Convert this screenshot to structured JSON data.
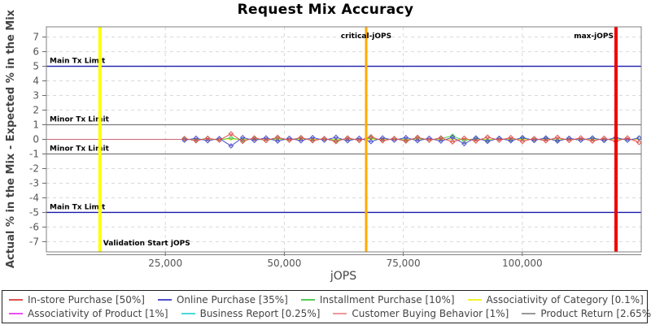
{
  "title": "Request Mix Accuracy",
  "legend": {
    "row_break": 4
  },
  "chart_data": {
    "type": "line",
    "title": "Request Mix Accuracy",
    "xlabel": "jOPS",
    "ylabel": "Actual % in the Mix - Expected % in the Mix",
    "xlim": [
      0,
      125000
    ],
    "ylim": [
      -7.7,
      7.7
    ],
    "x_ticks": [
      25000,
      50000,
      75000,
      100000
    ],
    "x_tick_labels": [
      "25,000",
      "50,000",
      "75,000",
      "100,000"
    ],
    "y_ticks": [
      -7,
      -6,
      -5,
      -4,
      -3,
      -2,
      -1,
      0,
      1,
      2,
      3,
      4,
      5,
      6,
      7
    ],
    "grid": true,
    "legend_position": "bottom",
    "reference_lines_h": [
      {
        "label": "Main Tx Limit",
        "value": 5,
        "color": "#1a1aaa",
        "width": 1.3
      },
      {
        "label": "Minor Tx Limit",
        "value": 1,
        "color": "#7a7a7a",
        "width": 1.2
      },
      {
        "label": "",
        "value": 0,
        "color": "#cc6677",
        "width": 1
      },
      {
        "label": "Minor Tx Limit",
        "value": -1,
        "color": "#7a7a7a",
        "width": 1.2
      },
      {
        "label": "Main Tx Limit",
        "value": -5,
        "color": "#1a1aaa",
        "width": 1.3
      }
    ],
    "reference_lines_v": [
      {
        "label": "Validation Start jOPS",
        "value": 11250,
        "color": "#ffff00",
        "width": 4,
        "label_pos": "bottom-right"
      },
      {
        "label": "critical-jOPS",
        "value": 67200,
        "color": "#ffaa00",
        "width": 3,
        "label_pos": "top-center"
      },
      {
        "label": "max-jOPS",
        "value": 119700,
        "color": "#ee0000",
        "width": 4,
        "label_pos": "top-left"
      }
    ],
    "x": [
      29000,
      31450,
      33900,
      36350,
      38800,
      41250,
      43700,
      46150,
      48600,
      51050,
      53500,
      55950,
      58400,
      60850,
      63300,
      65750,
      68200,
      70650,
      73100,
      75550,
      78000,
      80450,
      82900,
      85350,
      87800,
      90250,
      92700,
      95150,
      97600,
      100050,
      102500,
      104950,
      107400,
      109850,
      112300,
      114750,
      117200,
      119650,
      122100,
      124550
    ],
    "series": [
      {
        "name": "In-store Purchase [50%]",
        "color": "#e05050",
        "markers": true,
        "values": [
          0.06,
          -0.1,
          0.08,
          -0.06,
          0.38,
          -0.14,
          0.1,
          -0.08,
          0.14,
          -0.06,
          0.12,
          -0.1,
          0.06,
          -0.16,
          0.1,
          -0.08,
          0.18,
          -0.1,
          0.06,
          -0.12,
          0.14,
          -0.06,
          0.1,
          -0.18,
          0.08,
          -0.12,
          0.16,
          -0.06,
          0.12,
          -0.14,
          0.06,
          -0.1,
          0.14,
          -0.08,
          0.1,
          -0.12,
          0.08,
          -0.14,
          0.1,
          -0.22
        ]
      },
      {
        "name": "Online Purchase [35%]",
        "color": "#5050cc",
        "markers": true,
        "values": [
          -0.06,
          0.08,
          -0.1,
          0.06,
          -0.45,
          0.12,
          -0.08,
          0.1,
          -0.12,
          0.08,
          -0.1,
          0.12,
          -0.06,
          0.14,
          -0.1,
          0.08,
          -0.16,
          0.1,
          -0.06,
          0.12,
          -0.1,
          0.08,
          -0.12,
          0.14,
          -0.3,
          0.1,
          -0.14,
          0.08,
          -0.1,
          0.12,
          -0.08,
          0.1,
          -0.12,
          0.08,
          -0.06,
          0.1,
          -0.08,
          0.12,
          -0.06,
          0.1
        ]
      },
      {
        "name": "Installment Purchase [10%]",
        "color": "#55cc55",
        "markers": true,
        "values": [
          0.03,
          -0.05,
          0.06,
          -0.04,
          0.1,
          -0.06,
          0.05,
          -0.07,
          0.06,
          -0.04,
          0.08,
          -0.06,
          0.04,
          -0.08,
          0.06,
          -0.05,
          0.1,
          -0.07,
          0.05,
          -0.06,
          0.08,
          -0.05,
          0.06,
          0.22,
          -0.08,
          0.06,
          -0.09,
          0.05,
          -0.06,
          0.08,
          -0.04,
          0.06,
          -0.08,
          0.05,
          -0.06,
          0.07,
          -0.04,
          0.06,
          -0.05,
          0.08
        ]
      },
      {
        "name": "Associativity of Category [0.1%]",
        "color": "#f2f230",
        "markers": false,
        "values": [
          0,
          0,
          0,
          0,
          0,
          0,
          0,
          0,
          0,
          0,
          0,
          0,
          0,
          0,
          0,
          0,
          0,
          0,
          0,
          0,
          0,
          0,
          0,
          0,
          0,
          0,
          0,
          0,
          0,
          0,
          0,
          0,
          0,
          0,
          0,
          0,
          0,
          0,
          0,
          0
        ]
      },
      {
        "name": "Associativity of Product [1%]",
        "color": "#f04cf0",
        "markers": false,
        "values": [
          0,
          0,
          0,
          0,
          0,
          0,
          0,
          0,
          0,
          0,
          0,
          0,
          0,
          0,
          0,
          0,
          0,
          0,
          0,
          0,
          0,
          0,
          0,
          0,
          0,
          0,
          0,
          0,
          0,
          0,
          0,
          0,
          0,
          0,
          0,
          0,
          0,
          0,
          0,
          0
        ]
      },
      {
        "name": "Business Report [0.25%]",
        "color": "#4cd8d8",
        "markers": false,
        "values": [
          0,
          0,
          0,
          0,
          0,
          0,
          0,
          0,
          0,
          0,
          0,
          0,
          0,
          0,
          0,
          0,
          0,
          0,
          0,
          0,
          0,
          0,
          0,
          0,
          0,
          0,
          0,
          0,
          0,
          0,
          0,
          0,
          0,
          0,
          0,
          0,
          0,
          0,
          0,
          0
        ]
      },
      {
        "name": "Customer Buying Behavior [1%]",
        "color": "#f09898",
        "markers": false,
        "values": [
          0.02,
          -0.03,
          0.03,
          -0.02,
          0.04,
          -0.03,
          0.02,
          -0.04,
          0.03,
          -0.02,
          0.04,
          -0.03,
          0.02,
          -0.03,
          0.03,
          -0.02,
          0.05,
          -0.03,
          0.02,
          -0.04,
          0.03,
          -0.02,
          0.04,
          -0.03,
          0.02,
          -0.04,
          0.03,
          -0.02,
          0.04,
          -0.03,
          0.02,
          -0.03,
          0.04,
          -0.02,
          0.03,
          -0.04,
          0.02,
          -0.03,
          0.03,
          -0.05
        ]
      },
      {
        "name": "Product Return [2.65%]",
        "color": "#999999",
        "markers": false,
        "values": [
          0,
          0,
          0,
          0,
          0,
          0,
          0,
          0,
          0,
          0,
          0,
          0,
          0,
          0,
          0,
          0,
          0,
          0,
          0,
          0,
          0,
          0,
          0,
          0,
          0,
          0,
          0,
          0,
          0,
          0,
          0,
          0,
          0,
          0,
          0,
          0,
          0,
          0,
          0,
          0
        ]
      }
    ]
  }
}
